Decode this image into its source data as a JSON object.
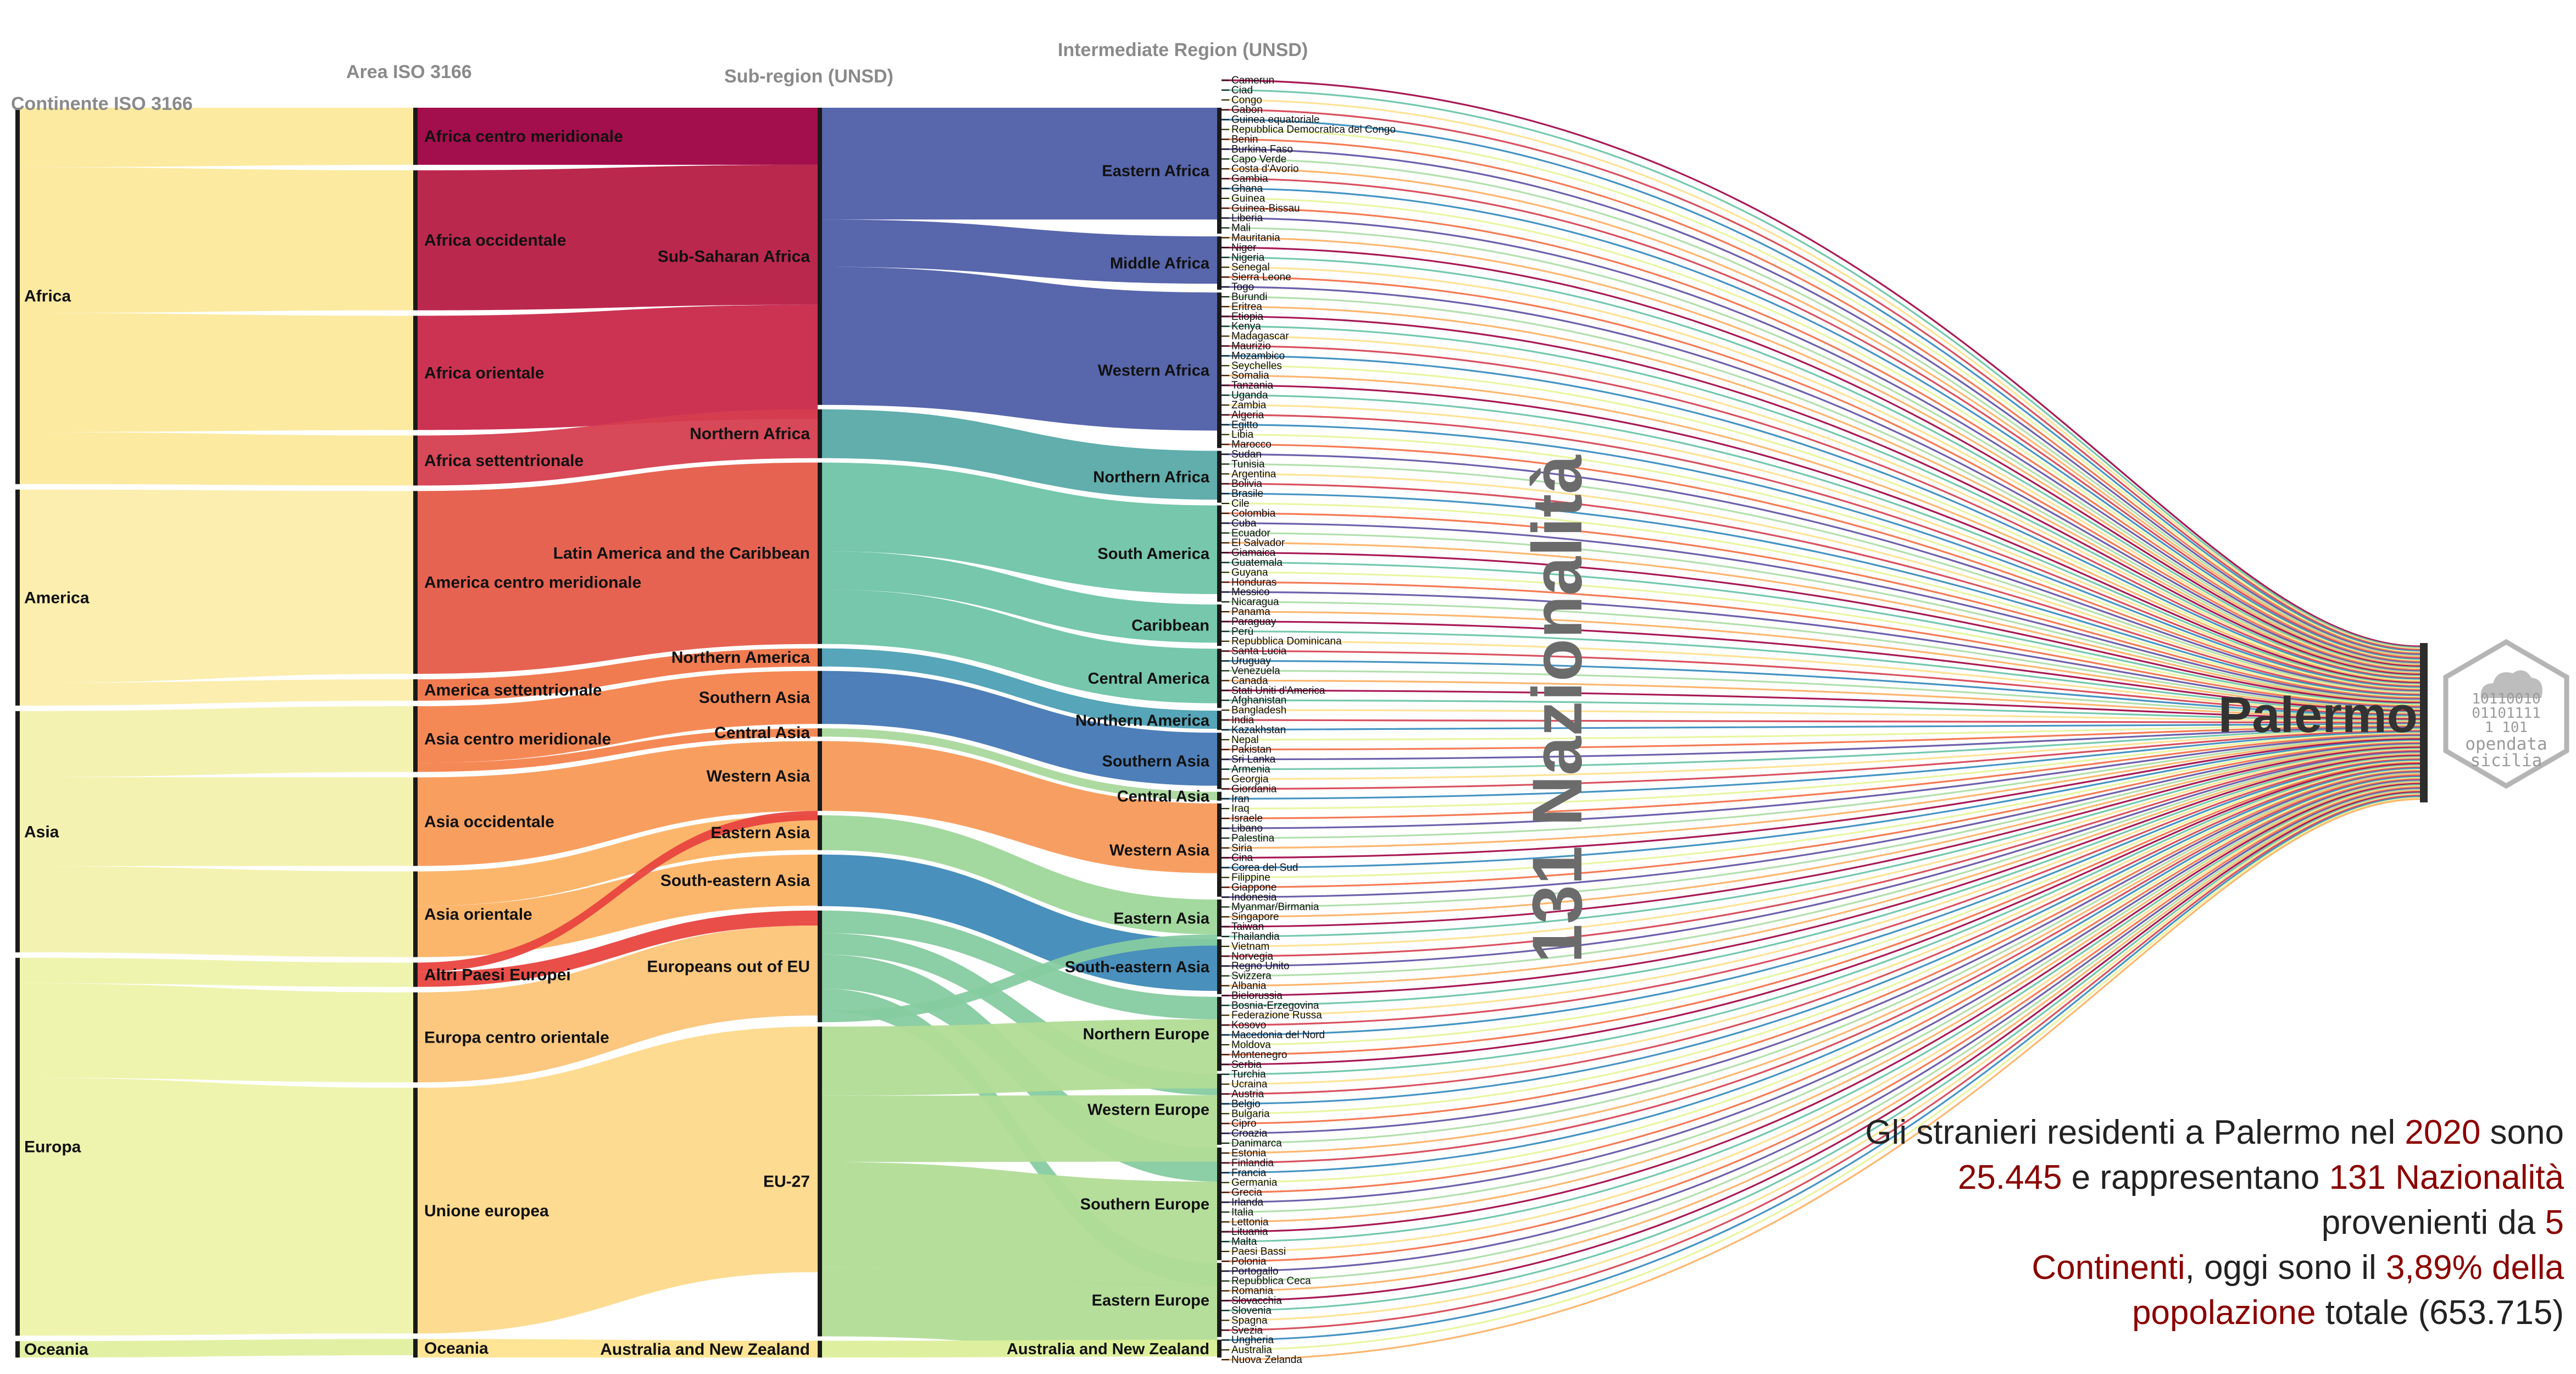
{
  "headers": {
    "continent": "Continente ISO 3166",
    "area": "Area ISO 3166",
    "subregion": "Sub-region (UNSD)",
    "intermediate": "Intermediate Region (UNSD)"
  },
  "vertical_title": "131 Nazionalità",
  "city": "Palermo",
  "logo": {
    "bits1": "10110010",
    "bits2": "01101111",
    "bits3": "1  101",
    "word1": "opendata",
    "word2": "sicilia"
  },
  "caption": {
    "t1": "Gli stranieri residenti a Palermo nel ",
    "year": "2020",
    "t2": " sono ",
    "total": "25.445",
    "t3": " e rappresentano ",
    "nationalities": "131 Nazionalità",
    "t4": " provenienti da ",
    "continents_n": "5",
    "continents_word": "Continenti",
    "t5": ", oggi sono il ",
    "percent": "3,89% della",
    "popolazione": "popolazione",
    "t6": " totale (653.715)"
  },
  "chart_data": {
    "type": "sankey",
    "title": "",
    "unit_total": 25445,
    "columns": [
      {
        "key": "continent",
        "nodes": [
          {
            "name": "Africa",
            "frac": 0.2535,
            "color": "#fbeaa0"
          },
          {
            "name": "America",
            "frac": 0.1455,
            "color": "#fbeeae"
          },
          {
            "name": "Asia",
            "frac": 0.1625,
            "color": "#f4f2b0"
          },
          {
            "name": "Europa",
            "frac": 0.2545,
            "color": "#eef4ae"
          },
          {
            "name": "Oceania",
            "frac": 0.011,
            "color": "#e2f0a3"
          }
        ]
      },
      {
        "key": "area",
        "nodes": [
          {
            "name": "Africa centro meridionale",
            "frac": 0.04,
            "color": "#9e0142"
          },
          {
            "name": "Africa occidentale",
            "frac": 0.098,
            "color": "#b71c45"
          },
          {
            "name": "Africa orientale",
            "frac": 0.08,
            "color": "#c9284a"
          },
          {
            "name": "Africa settentrionale",
            "frac": 0.035,
            "color": "#d53e4f"
          },
          {
            "name": "America centro meridionale",
            "frac": 0.128,
            "color": "#e55b49"
          },
          {
            "name": "America settentrionale",
            "frac": 0.015,
            "color": "#ef7448"
          },
          {
            "name": "Asia centro meridionale",
            "frac": 0.046,
            "color": "#f4834d"
          },
          {
            "name": "Asia occidentale",
            "frac": 0.062,
            "color": "#f89a57"
          },
          {
            "name": "Asia orientale",
            "frac": 0.06,
            "color": "#fcb264"
          },
          {
            "name": "Altri Paesi Europei",
            "frac": 0.017,
            "color": "#e8453f"
          },
          {
            "name": "Europa centro orientale",
            "frac": 0.063,
            "color": "#fcc478"
          },
          {
            "name": "Unione europea",
            "frac": 0.172,
            "color": "#fdd98a"
          },
          {
            "name": "Oceania",
            "frac": 0.013,
            "color": "#fee48f"
          }
        ]
      },
      {
        "key": "subregion",
        "nodes": [
          {
            "name": "Sub-Saharan Africa",
            "frac": 0.213,
            "color": "#4f5ea8"
          },
          {
            "name": "Northern Africa",
            "frac": 0.035,
            "color": "#58aaa8"
          },
          {
            "name": "Latin America and the Caribbean",
            "frac": 0.13,
            "color": "#6fc4a8"
          },
          {
            "name": "Northern America",
            "frac": 0.013,
            "color": "#4da0b4"
          },
          {
            "name": "Southern Asia",
            "frac": 0.038,
            "color": "#4478b4"
          },
          {
            "name": "Central Asia",
            "frac": 0.006,
            "color": "#a9d89c"
          },
          {
            "name": "Western Asia",
            "frac": 0.05,
            "color": "#f79a5a"
          },
          {
            "name": "Eastern Asia",
            "frac": 0.025,
            "color": "#9ed79a"
          },
          {
            "name": "South-eastern Asia",
            "frac": 0.037,
            "color": "#3f8ab8"
          },
          {
            "name": "Europeans out of EU",
            "frac": 0.08,
            "color": "#86cba0"
          },
          {
            "name": "EU-27",
            "frac": 0.222,
            "color": "#b1dc96"
          },
          {
            "name": "Australia and New Zealand",
            "frac": 0.012,
            "color": "#dcef9a"
          }
        ]
      },
      {
        "key": "intermediate",
        "nodes": [
          {
            "name": "Eastern Africa",
            "frac": 0.085,
            "color": "#4f5ea8"
          },
          {
            "name": "Middle Africa",
            "frac": 0.036,
            "color": "#4f5ea8"
          },
          {
            "name": "Western Africa",
            "frac": 0.105,
            "color": "#4f5ea8"
          },
          {
            "name": "Northern Africa",
            "frac": 0.035,
            "color": "#58aaa8"
          },
          {
            "name": "South America",
            "frac": 0.065,
            "color": "#6fc4a8"
          },
          {
            "name": "Caribbean",
            "frac": 0.028,
            "color": "#6fc4a8"
          },
          {
            "name": "Central America",
            "frac": 0.04,
            "color": "#6fc4a8"
          },
          {
            "name": "Northern America",
            "frac": 0.013,
            "color": "#4da0b4"
          },
          {
            "name": "Southern Asia",
            "frac": 0.038,
            "color": "#4478b4"
          },
          {
            "name": "Central Asia",
            "frac": 0.006,
            "color": "#a9d89c"
          },
          {
            "name": "Western Asia",
            "frac": 0.063,
            "color": "#5e4fa2"
          },
          {
            "name": "Eastern Asia",
            "frac": 0.025,
            "color": "#9ed79a"
          },
          {
            "name": "South-eastern Asia",
            "frac": 0.037,
            "color": "#3f8ab8"
          },
          {
            "name": "Northern Europe",
            "frac": 0.05,
            "color": "#b1dc96"
          },
          {
            "name": "Western Europe",
            "frac": 0.048,
            "color": "#b1dc96"
          },
          {
            "name": "Southern Europe",
            "frac": 0.076,
            "color": "#b1dc96"
          },
          {
            "name": "Eastern Europe",
            "frac": 0.05,
            "color": "#b1dc96"
          },
          {
            "name": "Australia and New Zealand",
            "frac": 0.012,
            "color": "#dcef9a"
          }
        ]
      }
    ],
    "nationalities": [
      "Camerun",
      "Ciad",
      "Congo",
      "Gabon",
      "Guinea equatoriale",
      "Repubblica Democratica del Congo",
      "Benin",
      "Burkina Faso",
      "Capo Verde",
      "Costa d'Avorio",
      "Gambia",
      "Ghana",
      "Guinea",
      "Guinea-Bissau",
      "Liberia",
      "Mali",
      "Mauritania",
      "Niger",
      "Nigeria",
      "Senegal",
      "Sierra Leone",
      "Togo",
      "Burundi",
      "Eritrea",
      "Etiopia",
      "Kenya",
      "Madagascar",
      "Maurizio",
      "Mozambico",
      "Seychelles",
      "Somalia",
      "Tanzania",
      "Uganda",
      "Zambia",
      "Algeria",
      "Egitto",
      "Libia",
      "Marocco",
      "Sudan",
      "Tunisia",
      "Argentina",
      "Bolivia",
      "Brasile",
      "Cile",
      "Colombia",
      "Cuba",
      "Ecuador",
      "El Salvador",
      "Giamaica",
      "Guatemala",
      "Guyana",
      "Honduras",
      "Messico",
      "Nicaragua",
      "Panama",
      "Paraguay",
      "Perù",
      "Repubblica Dominicana",
      "Santa Lucia",
      "Uruguay",
      "Venezuela",
      "Canada",
      "Stati Uniti d'America",
      "Afghanistan",
      "Bangladesh",
      "India",
      "Kazakhstan",
      "Nepal",
      "Pakistan",
      "Sri Lanka",
      "Armenia",
      "Georgia",
      "Giordania",
      "Iran",
      "Iraq",
      "Israele",
      "Libano",
      "Palestina",
      "Siria",
      "Cina",
      "Corea del Sud",
      "Filippine",
      "Giappone",
      "Indonesia",
      "Myanmar/Birmania",
      "Singapore",
      "Taiwan",
      "Thailandia",
      "Vietnam",
      "Norvegia",
      "Regno Unito",
      "Svizzera",
      "Albania",
      "Bielorussia",
      "Bosnia-Erzegovina",
      "Federazione Russa",
      "Kosovo",
      "Macedonia del Nord",
      "Moldova",
      "Montenegro",
      "Serbia",
      "Turchia",
      "Ucraina",
      "Austria",
      "Belgio",
      "Bulgaria",
      "Cipro",
      "Croazia",
      "Danimarca",
      "Estonia",
      "Finlandia",
      "Francia",
      "Germania",
      "Grecia",
      "Irlanda",
      "Italia",
      "Lettonia",
      "Lituania",
      "Malta",
      "Paesi Bassi",
      "Polonia",
      "Portogallo",
      "Repubblica Ceca",
      "Romania",
      "Slovacchia",
      "Slovenia",
      "Spagna",
      "Svezia",
      "Ungheria",
      "Australia",
      "Nuova Zelanda"
    ],
    "target": "Palermo",
    "links": [
      {
        "from": "Africa",
        "to": "Africa centro meridionale"
      },
      {
        "from": "Africa",
        "to": "Africa occidentale"
      },
      {
        "from": "Africa",
        "to": "Africa orientale"
      },
      {
        "from": "Africa",
        "to": "Africa settentrionale"
      },
      {
        "from": "America",
        "to": "America centro meridionale"
      },
      {
        "from": "America",
        "to": "America settentrionale"
      },
      {
        "from": "Asia",
        "to": "Asia centro meridionale"
      },
      {
        "from": "Asia",
        "to": "Asia occidentale"
      },
      {
        "from": "Asia",
        "to": "Asia orientale"
      },
      {
        "from": "Europa",
        "to": "Altri Paesi Europei"
      },
      {
        "from": "Europa",
        "to": "Europa centro orientale"
      },
      {
        "from": "Europa",
        "to": "Unione europea"
      },
      {
        "from": "Oceania",
        "to": "Oceania"
      },
      {
        "from": "Africa centro meridionale",
        "to": "Sub-Saharan Africa"
      },
      {
        "from": "Africa occidentale",
        "to": "Sub-Saharan Africa"
      },
      {
        "from": "Africa orientale",
        "to": "Sub-Saharan Africa"
      },
      {
        "from": "Africa settentrionale",
        "to": "Northern Africa"
      },
      {
        "from": "America centro meridionale",
        "to": "Latin America and the Caribbean"
      },
      {
        "from": "America settentrionale",
        "to": "Northern America"
      },
      {
        "from": "Asia centro meridionale",
        "to": "Southern Asia"
      },
      {
        "from": "Asia centro meridionale",
        "to": "Central Asia"
      },
      {
        "from": "Asia occidentale",
        "to": "Western Asia"
      },
      {
        "from": "Asia orientale",
        "to": "Eastern Asia"
      },
      {
        "from": "Asia orientale",
        "to": "South-eastern Asia"
      },
      {
        "from": "Altri Paesi Europei",
        "to": "Western Asia"
      },
      {
        "from": "Altri Paesi Europei",
        "to": "Europeans out of EU"
      },
      {
        "from": "Europa centro orientale",
        "to": "Europeans out of EU"
      },
      {
        "from": "Unione europea",
        "to": "EU-27"
      },
      {
        "from": "Oceania",
        "to": "Australia and New Zealand"
      },
      {
        "from": "Sub-Saharan Africa",
        "to": "Eastern Africa"
      },
      {
        "from": "Sub-Saharan Africa",
        "to": "Middle Africa"
      },
      {
        "from": "Sub-Saharan Africa",
        "to": "Western Africa"
      },
      {
        "from": "Northern Africa",
        "to": "Northern Africa"
      },
      {
        "from": "Latin America and the Caribbean",
        "to": "South America"
      },
      {
        "from": "Latin America and the Caribbean",
        "to": "Caribbean"
      },
      {
        "from": "Latin America and the Caribbean",
        "to": "Central America"
      },
      {
        "from": "Northern America",
        "to": "Northern America"
      },
      {
        "from": "Southern Asia",
        "to": "Southern Asia"
      },
      {
        "from": "Central Asia",
        "to": "Central Asia"
      },
      {
        "from": "Western Asia",
        "to": "Western Asia"
      },
      {
        "from": "Eastern Asia",
        "to": "Eastern Asia"
      },
      {
        "from": "South-eastern Asia",
        "to": "South-eastern Asia"
      },
      {
        "from": "Europeans out of EU",
        "to": "Northern Europe"
      },
      {
        "from": "Europeans out of EU",
        "to": "Western Europe"
      },
      {
        "from": "Europeans out of EU",
        "to": "Southern Europe"
      },
      {
        "from": "Europeans out of EU",
        "to": "Eastern Europe"
      },
      {
        "from": "Europeans out of EU",
        "to": "Eastern Asia"
      },
      {
        "from": "EU-27",
        "to": "Northern Europe"
      },
      {
        "from": "EU-27",
        "to": "Western Europe"
      },
      {
        "from": "EU-27",
        "to": "Southern Europe"
      },
      {
        "from": "EU-27",
        "to": "Eastern Europe"
      },
      {
        "from": "Australia and New Zealand",
        "to": "Australia and New Zealand"
      }
    ],
    "palette": [
      "#9e0142",
      "#d53e4f",
      "#f46d43",
      "#fdae61",
      "#fee08b",
      "#e6f598",
      "#abdda4",
      "#66c2a5",
      "#3288bd",
      "#5e4fa2"
    ]
  }
}
